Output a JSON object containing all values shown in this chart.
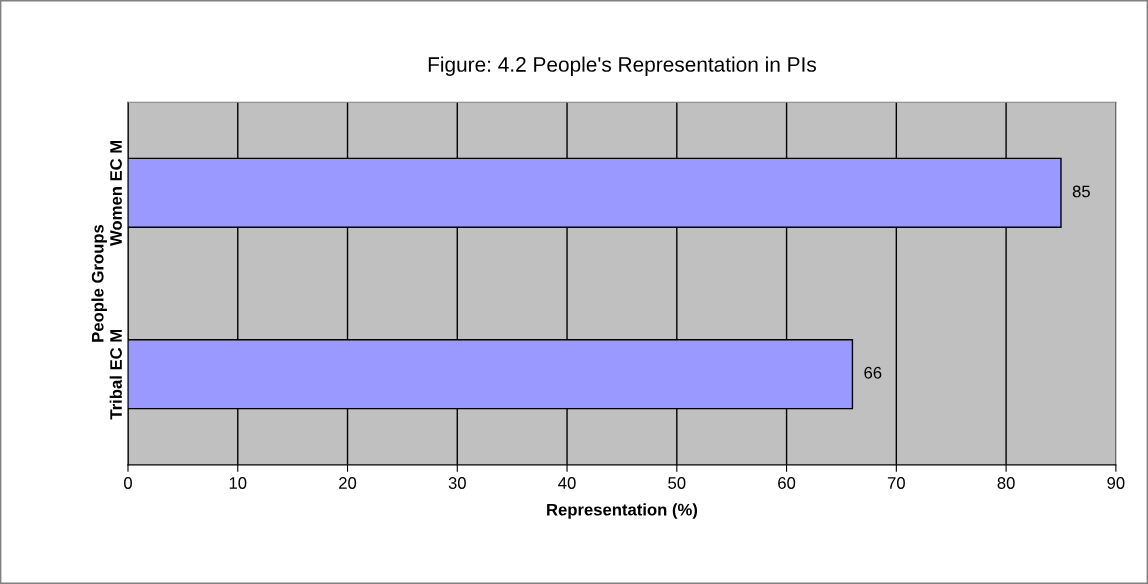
{
  "chart_data": {
    "type": "bar",
    "orientation": "horizontal",
    "title": "Figure: 4.2 People's Representation in PIs",
    "xlabel": "Representation (%)",
    "ylabel": "People Groups",
    "categories": [
      "Women EC M",
      "Tribal EC M"
    ],
    "values": [
      85,
      66
    ],
    "color": "#9999ff",
    "xlim": [
      0,
      90
    ],
    "xticks": [
      0,
      10,
      20,
      30,
      40,
      50,
      60,
      70,
      80,
      90
    ],
    "grid": "x",
    "data_labels": true
  }
}
